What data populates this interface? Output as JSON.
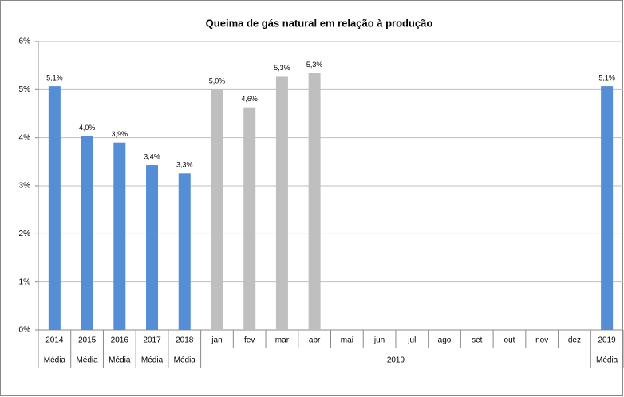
{
  "chart_data": {
    "type": "bar",
    "title": "Queima de gás natural em relação à produção",
    "categories": [
      "2014",
      "2015",
      "2016",
      "2017",
      "2018",
      "jan",
      "fev",
      "mar",
      "abr",
      "mai",
      "jun",
      "jul",
      "ago",
      "set",
      "out",
      "nov",
      "dez",
      "2019"
    ],
    "groups": [
      {
        "label": "Média",
        "span": 1
      },
      {
        "label": "Média",
        "span": 1
      },
      {
        "label": "Média",
        "span": 1
      },
      {
        "label": "Média",
        "span": 1
      },
      {
        "label": "Média",
        "span": 1
      },
      {
        "label": "2019",
        "span": 12
      },
      {
        "label": "Média",
        "span": 1
      }
    ],
    "values": [
      5.07,
      4.03,
      3.9,
      3.43,
      3.26,
      5.0,
      4.63,
      5.28,
      5.34,
      null,
      null,
      null,
      null,
      null,
      null,
      null,
      null,
      5.07
    ],
    "value_labels": [
      "5,1%",
      "4,0%",
      "3,9%",
      "3,4%",
      "3,3%",
      "5,0%",
      "4,6%",
      "5,3%",
      "5,3%",
      null,
      null,
      null,
      null,
      null,
      null,
      null,
      null,
      "5,1%"
    ],
    "colors": [
      "#558ed5",
      "#558ed5",
      "#558ed5",
      "#558ed5",
      "#558ed5",
      "#bfbfbf",
      "#bfbfbf",
      "#bfbfbf",
      "#bfbfbf",
      "#bfbfbf",
      "#bfbfbf",
      "#bfbfbf",
      "#bfbfbf",
      "#bfbfbf",
      "#bfbfbf",
      "#bfbfbf",
      "#bfbfbf",
      "#558ed5"
    ],
    "ylim": [
      0,
      6
    ],
    "yticks": [
      {
        "value": 0,
        "label": "0%"
      },
      {
        "value": 1,
        "label": "1%"
      },
      {
        "value": 2,
        "label": "2%"
      },
      {
        "value": 3,
        "label": "3%"
      },
      {
        "value": 4,
        "label": "4%"
      },
      {
        "value": 5,
        "label": "5%"
      },
      {
        "value": 6,
        "label": "6%"
      }
    ],
    "grid": true
  }
}
